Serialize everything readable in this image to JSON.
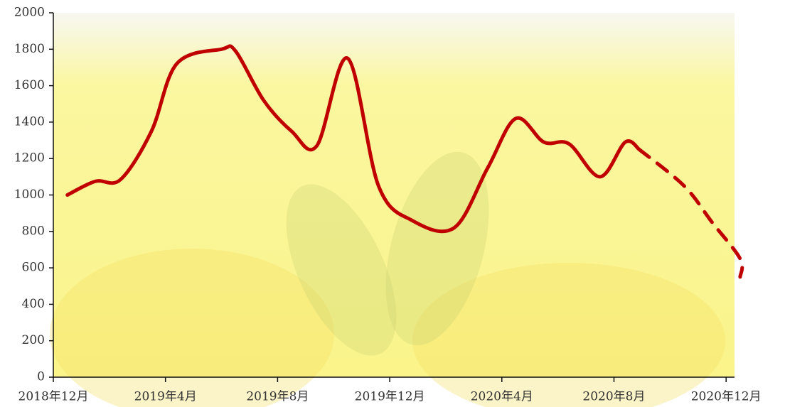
{
  "chart_data": {
    "type": "line",
    "x": [
      0.5,
      1.5,
      2.4,
      3.5,
      4.4,
      6.0,
      6.5,
      7.5,
      8.5,
      9.4,
      10.5,
      11.6,
      12.8,
      14.3,
      15.5,
      16.5,
      17.5,
      18.4,
      19.5,
      20.4,
      20.9
    ],
    "series": [
      {
        "color": "#c00000",
        "dash": false,
        "x": [
          0.5,
          1.5,
          2.4,
          3.5,
          4.4,
          6.0,
          6.5,
          7.5,
          8.5,
          9.4,
          10.5,
          11.6,
          12.8,
          14.3,
          15.5,
          16.5,
          17.5,
          18.4,
          19.5,
          20.4,
          20.9
        ],
        "values": [
          1000,
          1075,
          1085,
          1350,
          1720,
          1800,
          1790,
          1520,
          1350,
          1270,
          1750,
          1050,
          860,
          820,
          1150,
          1420,
          1290,
          1280,
          1100,
          1290,
          1250
        ]
      },
      {
        "color": "#c00000",
        "dash": true,
        "x": [
          20.9,
          22.5,
          23.5,
          24.5,
          24.5
        ],
        "values": [
          1250,
          1050,
          850,
          650,
          550
        ]
      }
    ],
    "xlim": [
      0,
      24.3
    ],
    "xticks": [
      {
        "value": 0,
        "label": "2018年12月"
      },
      {
        "value": 4,
        "label": "2019年4月"
      },
      {
        "value": 8,
        "label": "2019年8月"
      },
      {
        "value": 12,
        "label": "2019年12月"
      },
      {
        "value": 16,
        "label": "2020年4月"
      },
      {
        "value": 20,
        "label": "2020年8月"
      },
      {
        "value": 24,
        "label": "2020年12月"
      }
    ],
    "ylim": [
      0,
      2000
    ],
    "yticks": [
      0,
      200,
      400,
      600,
      800,
      1000,
      1200,
      1400,
      1600,
      1800,
      2000
    ]
  }
}
